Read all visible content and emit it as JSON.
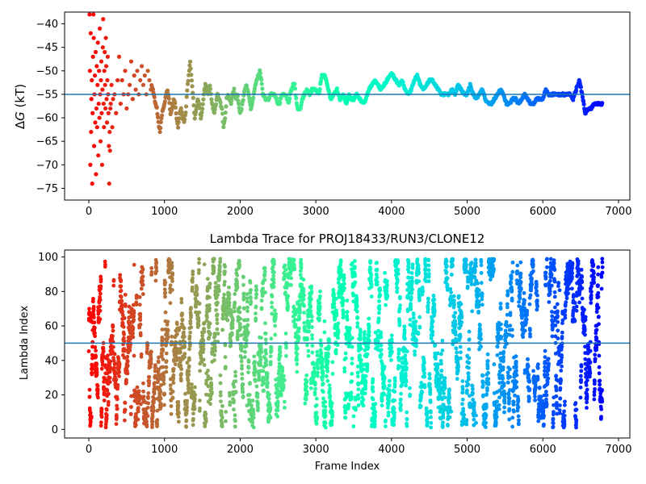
{
  "chart_data": [
    {
      "type": "scatter",
      "title": "",
      "xlabel": "",
      "ylabel": "ΔG (kT)",
      "ylabel_parts": {
        "italic": "G",
        "prefix": "Δ",
        "suffix": " (kT)"
      },
      "xlim": [
        -320,
        7150
      ],
      "ylim": [
        -77.5,
        -37.5
      ],
      "xticks": [
        0,
        1000,
        2000,
        3000,
        4000,
        5000,
        6000,
        7000
      ],
      "yticks": [
        -75,
        -70,
        -65,
        -60,
        -55,
        -50,
        -45,
        -40
      ],
      "hline": -55,
      "hline_color": "#1f77b4",
      "colormap": "rainbow (frame index)",
      "color_range": [
        0,
        6800
      ],
      "grid": false,
      "noisy_points": [
        [
          10,
          -38
        ],
        [
          15,
          -50
        ],
        [
          20,
          -70
        ],
        [
          25,
          -42
        ],
        [
          30,
          -63
        ],
        [
          35,
          -56
        ],
        [
          40,
          -52
        ],
        [
          45,
          -74
        ],
        [
          50,
          -59
        ],
        [
          55,
          -47
        ],
        [
          60,
          -38
        ],
        [
          65,
          -43
        ],
        [
          70,
          -66
        ],
        [
          75,
          -55
        ],
        [
          80,
          -51
        ],
        [
          85,
          -61
        ],
        [
          90,
          -46
        ],
        [
          95,
          -72
        ],
        [
          100,
          -58
        ],
        [
          105,
          -49
        ],
        [
          110,
          -62
        ],
        [
          115,
          -53
        ],
        [
          120,
          -44
        ],
        [
          125,
          -68
        ],
        [
          130,
          -57
        ],
        [
          135,
          -50
        ],
        [
          140,
          -60
        ],
        [
          145,
          -41
        ],
        [
          150,
          -55
        ],
        [
          155,
          -65
        ],
        [
          160,
          -52
        ],
        [
          165,
          -48
        ],
        [
          170,
          -59
        ],
        [
          175,
          -70
        ],
        [
          180,
          -54
        ],
        [
          185,
          -45
        ],
        [
          190,
          -39
        ],
        [
          195,
          -57
        ],
        [
          200,
          -62
        ],
        [
          205,
          -50
        ],
        [
          210,
          -46
        ],
        [
          215,
          -53
        ],
        [
          220,
          -58
        ],
        [
          225,
          -43
        ],
        [
          230,
          -49
        ],
        [
          235,
          -56
        ],
        [
          240,
          -61
        ],
        [
          245,
          -52
        ],
        [
          250,
          -47
        ],
        [
          255,
          -55
        ],
        [
          260,
          -59
        ],
        [
          265,
          -66
        ],
        [
          270,
          -74
        ],
        [
          275,
          -63
        ],
        [
          280,
          -67
        ],
        [
          285,
          -58
        ],
        [
          290,
          -57
        ],
        [
          300,
          -53
        ],
        [
          310,
          -62
        ],
        [
          320,
          -56
        ],
        [
          340,
          -55
        ],
        [
          360,
          -59
        ],
        [
          380,
          -52
        ],
        [
          400,
          -47
        ],
        [
          420,
          -57
        ],
        [
          440,
          -52
        ],
        [
          460,
          -55
        ],
        [
          480,
          -50
        ],
        [
          500,
          -58
        ],
        [
          520,
          -55
        ],
        [
          540,
          -53
        ],
        [
          560,
          -48
        ],
        [
          580,
          -56
        ],
        [
          600,
          -51
        ],
        [
          620,
          -54
        ],
        [
          640,
          -50
        ],
        [
          660,
          -55
        ],
        [
          680,
          -52
        ],
        [
          700,
          -49
        ],
        [
          720,
          -53
        ],
        [
          740,
          -51
        ],
        [
          760,
          -55
        ],
        [
          780,
          -50
        ],
        [
          800,
          -52
        ],
        [
          820,
          -54
        ]
      ],
      "trace_keypoints": [
        [
          830,
          -53
        ],
        [
          860,
          -55
        ],
        [
          880,
          -57
        ],
        [
          900,
          -58
        ],
        [
          920,
          -61
        ],
        [
          940,
          -63
        ],
        [
          960,
          -60
        ],
        [
          980,
          -58
        ],
        [
          1000,
          -57
        ],
        [
          1020,
          -55
        ],
        [
          1040,
          -54
        ],
        [
          1060,
          -56
        ],
        [
          1080,
          -59
        ],
        [
          1100,
          -58
        ],
        [
          1120,
          -56
        ],
        [
          1140,
          -57
        ],
        [
          1160,
          -60
        ],
        [
          1180,
          -62
        ],
        [
          1200,
          -59
        ],
        [
          1220,
          -58
        ],
        [
          1240,
          -60
        ],
        [
          1260,
          -61
        ],
        [
          1280,
          -59
        ],
        [
          1300,
          -54
        ],
        [
          1320,
          -51
        ],
        [
          1340,
          -48
        ],
        [
          1360,
          -52
        ],
        [
          1380,
          -56
        ],
        [
          1400,
          -60
        ],
        [
          1420,
          -58
        ],
        [
          1440,
          -56
        ],
        [
          1460,
          -57
        ],
        [
          1480,
          -60
        ],
        [
          1500,
          -58
        ],
        [
          1520,
          -55
        ],
        [
          1540,
          -53
        ],
        [
          1560,
          -54
        ],
        [
          1580,
          -55
        ],
        [
          1600,
          -53
        ],
        [
          1620,
          -56
        ],
        [
          1640,
          -58
        ],
        [
          1660,
          -59
        ],
        [
          1680,
          -57
        ],
        [
          1700,
          -55
        ],
        [
          1720,
          -56
        ],
        [
          1740,
          -57
        ],
        [
          1760,
          -58
        ],
        [
          1780,
          -62
        ],
        [
          1800,
          -60
        ],
        [
          1820,
          -56
        ],
        [
          1840,
          -55
        ],
        [
          1860,
          -56
        ],
        [
          1880,
          -57
        ],
        [
          1900,
          -55
        ],
        [
          1920,
          -54
        ],
        [
          1940,
          -56
        ],
        [
          1960,
          -55
        ],
        [
          1980,
          -57
        ],
        [
          2000,
          -59
        ],
        [
          2020,
          -58
        ],
        [
          2040,
          -56
        ],
        [
          2060,
          -54
        ],
        [
          2080,
          -53
        ],
        [
          2100,
          -54
        ],
        [
          2120,
          -56
        ],
        [
          2140,
          -58
        ],
        [
          2160,
          -57
        ],
        [
          2180,
          -55
        ],
        [
          2200,
          -53
        ],
        [
          2220,
          -52
        ],
        [
          2240,
          -51
        ],
        [
          2260,
          -50
        ],
        [
          2280,
          -52
        ],
        [
          2300,
          -55
        ],
        [
          2340,
          -56
        ],
        [
          2380,
          -56
        ],
        [
          2400,
          -55
        ],
        [
          2450,
          -55
        ],
        [
          2480,
          -56
        ],
        [
          2500,
          -57
        ],
        [
          2520,
          -57
        ],
        [
          2550,
          -55
        ],
        [
          2600,
          -55
        ],
        [
          2640,
          -57
        ],
        [
          2660,
          -55
        ],
        [
          2700,
          -53
        ],
        [
          2720,
          -53
        ],
        [
          2740,
          -56
        ],
        [
          2760,
          -58
        ],
        [
          2800,
          -58
        ],
        [
          2820,
          -56
        ],
        [
          2850,
          -55
        ],
        [
          2880,
          -54
        ],
        [
          2920,
          -55
        ],
        [
          2950,
          -54
        ],
        [
          3000,
          -54
        ],
        [
          3040,
          -55
        ],
        [
          3060,
          -53
        ],
        [
          3080,
          -51
        ],
        [
          3120,
          -51
        ],
        [
          3150,
          -53
        ],
        [
          3180,
          -55
        ],
        [
          3200,
          -56
        ],
        [
          3240,
          -55
        ],
        [
          3280,
          -54
        ],
        [
          3320,
          -56
        ],
        [
          3360,
          -55
        ],
        [
          3400,
          -57
        ],
        [
          3440,
          -55
        ],
        [
          3470,
          -56
        ],
        [
          3500,
          -56
        ],
        [
          3540,
          -55
        ],
        [
          3580,
          -56
        ],
        [
          3620,
          -57
        ],
        [
          3660,
          -56
        ],
        [
          3700,
          -54
        ],
        [
          3740,
          -53
        ],
        [
          3780,
          -52
        ],
        [
          3820,
          -53
        ],
        [
          3860,
          -54
        ],
        [
          3900,
          -53
        ],
        [
          3940,
          -52
        ],
        [
          3980,
          -51
        ],
        [
          4000,
          -50.5
        ],
        [
          4020,
          -51
        ],
        [
          4060,
          -52
        ],
        [
          4100,
          -53
        ],
        [
          4140,
          -52
        ],
        [
          4180,
          -54
        ],
        [
          4220,
          -55
        ],
        [
          4260,
          -54
        ],
        [
          4300,
          -52
        ],
        [
          4340,
          -51
        ],
        [
          4380,
          -53
        ],
        [
          4420,
          -54
        ],
        [
          4460,
          -53
        ],
        [
          4500,
          -52
        ],
        [
          4540,
          -52
        ],
        [
          4580,
          -53
        ],
        [
          4620,
          -54
        ],
        [
          4660,
          -55
        ],
        [
          4700,
          -55
        ],
        [
          4760,
          -55
        ],
        [
          4800,
          -54
        ],
        [
          4840,
          -55
        ],
        [
          4880,
          -53
        ],
        [
          4920,
          -54
        ],
        [
          4960,
          -55
        ],
        [
          5000,
          -55
        ],
        [
          5040,
          -53
        ],
        [
          5080,
          -55
        ],
        [
          5120,
          -56
        ],
        [
          5160,
          -55
        ],
        [
          5200,
          -54
        ],
        [
          5240,
          -56
        ],
        [
          5280,
          -57
        ],
        [
          5320,
          -57
        ],
        [
          5360,
          -56
        ],
        [
          5400,
          -55
        ],
        [
          5440,
          -54
        ],
        [
          5480,
          -55
        ],
        [
          5520,
          -57
        ],
        [
          5560,
          -57
        ],
        [
          5600,
          -56
        ],
        [
          5640,
          -56
        ],
        [
          5680,
          -57
        ],
        [
          5720,
          -56
        ],
        [
          5760,
          -55
        ],
        [
          5800,
          -56
        ],
        [
          5840,
          -57
        ],
        [
          5880,
          -57
        ],
        [
          5920,
          -56
        ],
        [
          5960,
          -56
        ],
        [
          6000,
          -56
        ],
        [
          6040,
          -54
        ],
        [
          6080,
          -55
        ],
        [
          6120,
          -55
        ],
        [
          6160,
          -55
        ],
        [
          6200,
          -55
        ],
        [
          6240,
          -55
        ],
        [
          6280,
          -55
        ],
        [
          6320,
          -55
        ],
        [
          6360,
          -55
        ],
        [
          6400,
          -56
        ],
        [
          6440,
          -54
        ],
        [
          6480,
          -52
        ],
        [
          6520,
          -55
        ],
        [
          6560,
          -59
        ],
        [
          6600,
          -58
        ],
        [
          6640,
          -58
        ],
        [
          6680,
          -57
        ],
        [
          6720,
          -57
        ],
        [
          6760,
          -57
        ],
        [
          6790,
          -57
        ]
      ]
    },
    {
      "type": "scatter",
      "title": "Lambda Trace for PROJ18433/RUN3/CLONE12",
      "xlabel": "Frame Index",
      "ylabel": "Lambda Index",
      "xlim": [
        -320,
        7150
      ],
      "ylim": [
        -5,
        104
      ],
      "xticks": [
        0,
        1000,
        2000,
        3000,
        4000,
        5000,
        6000,
        7000
      ],
      "yticks": [
        0,
        20,
        40,
        60,
        80,
        100
      ],
      "hline": 50,
      "hline_color": "#1f77b4",
      "colormap": "rainbow (frame index)",
      "color_range": [
        0,
        6800
      ],
      "grid": false,
      "frame_range": [
        0,
        6790
      ],
      "lambda_range": [
        1,
        99
      ],
      "points_description_sample_seed": 18433
    }
  ]
}
